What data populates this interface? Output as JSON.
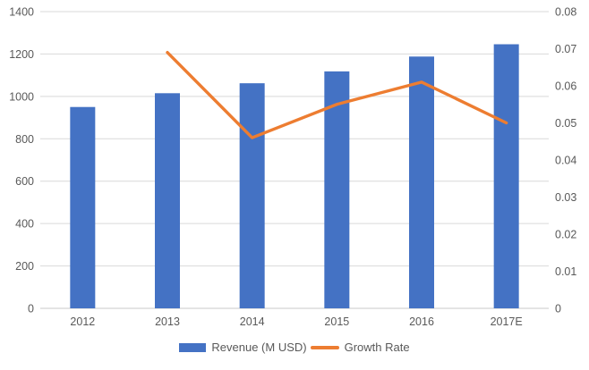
{
  "chart_data": {
    "type": "combo",
    "title": "",
    "categories": [
      "2012",
      "2013",
      "2014",
      "2015",
      "2016",
      "2017E"
    ],
    "series": [
      {
        "name": "Revenue (M USD)",
        "type": "bar",
        "axis": "left",
        "color": "#4472C4",
        "values": [
          950,
          1015,
          1062,
          1118,
          1188,
          1246
        ]
      },
      {
        "name": "Growth Rate",
        "type": "line",
        "axis": "right",
        "color": "#ED7D31",
        "values": [
          null,
          0.069,
          0.046,
          0.055,
          0.061,
          0.05
        ]
      }
    ],
    "left_axis": {
      "min": 0,
      "max": 1400,
      "step": 200,
      "tick_labels": [
        "0",
        "200",
        "400",
        "600",
        "800",
        "1000",
        "1200",
        "1400"
      ]
    },
    "right_axis": {
      "min": 0,
      "max": 0.08,
      "step": 0.01,
      "tick_labels": [
        "0",
        "0.01",
        "0.02",
        "0.03",
        "0.04",
        "0.05",
        "0.06",
        "0.07",
        "0.08"
      ]
    },
    "grid": "horizontal",
    "legend_position": "bottom",
    "colors": {
      "text": "#595959",
      "gridline": "#D9D9D9",
      "axis_line": "#C9C9C9",
      "background": "#FFFFFF"
    }
  }
}
